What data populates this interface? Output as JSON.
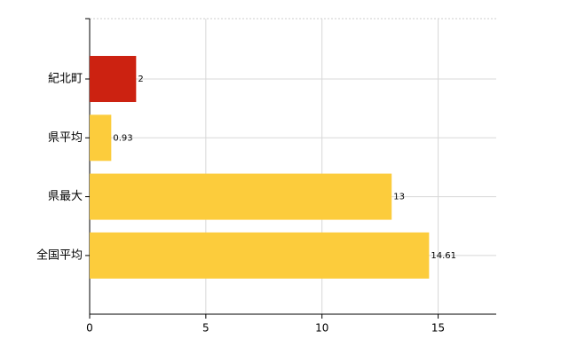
{
  "chart_data": {
    "type": "hbar",
    "categories": [
      "紀北町",
      "県平均",
      "県最大",
      "全国平均"
    ],
    "values": [
      2,
      0.93,
      13,
      14.61
    ],
    "colors": [
      "#cc2211",
      "#fccc3c",
      "#fccc3c",
      "#fccc3c"
    ],
    "xlim": [
      0,
      17.5
    ],
    "xticks": [
      0,
      5,
      10,
      15
    ],
    "grid": true
  }
}
